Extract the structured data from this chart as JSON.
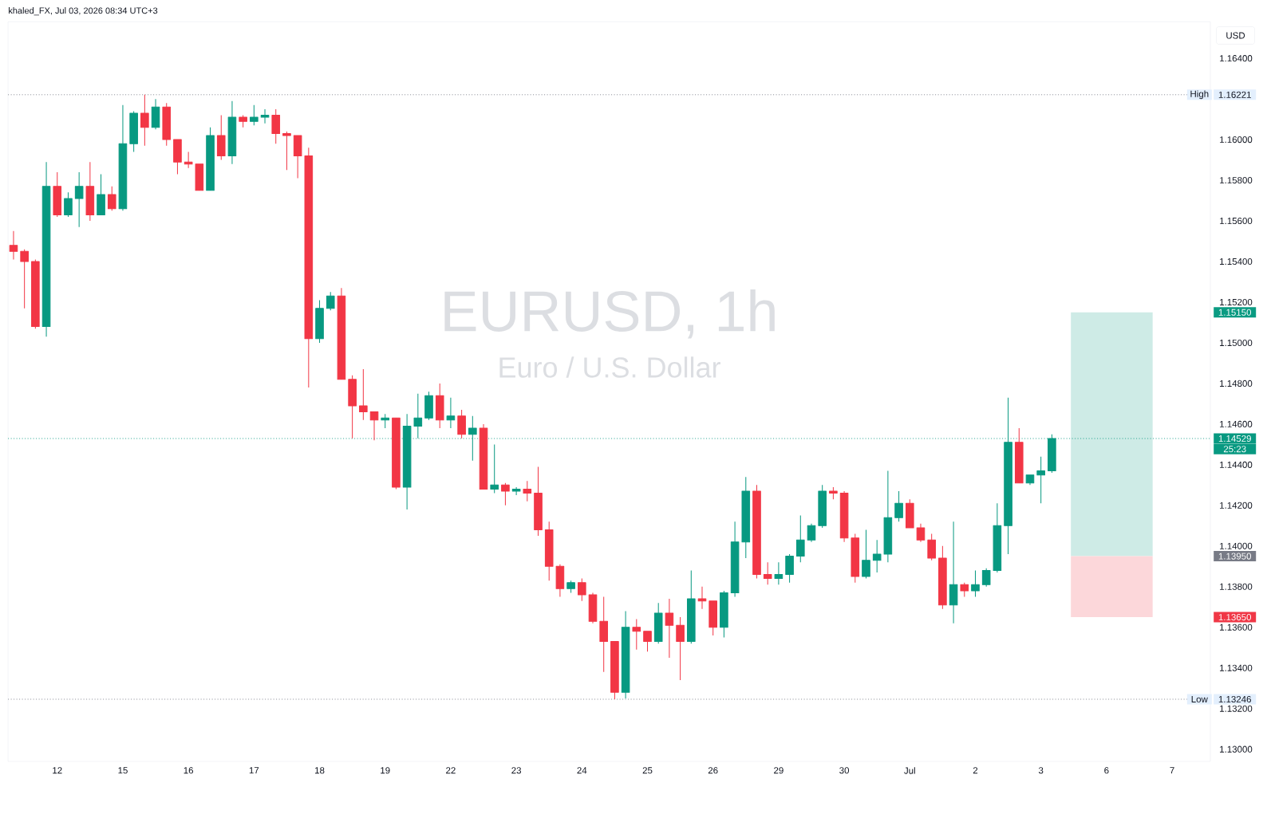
{
  "chart_data": {
    "type": "candlestick",
    "title": "EURUSD, 1h",
    "subtitle": "Euro / U.S. Dollar",
    "ylabel": "USD",
    "annotations": [
      "khaled_FX, Jul 03, 2026 08:34 UTC+3",
      "25:23"
    ],
    "categories": [
      null,
      null,
      null,
      null,
      "12",
      null,
      null,
      null,
      null,
      null,
      "15",
      null,
      null,
      null,
      null,
      null,
      "16",
      null,
      null,
      null,
      null,
      null,
      "17",
      null,
      null,
      null,
      null,
      null,
      "18",
      null,
      null,
      null,
      null,
      null,
      "19",
      null,
      null,
      null,
      null,
      null,
      "22",
      null,
      null,
      null,
      null,
      null,
      "23",
      null,
      null,
      null,
      null,
      null,
      "24",
      null,
      null,
      null,
      null,
      null,
      "25",
      null,
      null,
      null,
      null,
      null,
      "26",
      null,
      null,
      null,
      null,
      null,
      "29",
      null,
      null,
      null,
      null,
      null,
      "30",
      null,
      null,
      null,
      null,
      null,
      "Jul",
      null,
      null,
      null,
      null,
      null,
      "2",
      null,
      null,
      null,
      null,
      null,
      "3",
      null,
      null,
      null,
      null,
      null,
      "6",
      null,
      null,
      null,
      null,
      null,
      "7",
      null,
      null,
      null
    ],
    "ohlc": [
      [
        1.1548,
        1.1555,
        1.1541,
        1.1545
      ],
      [
        1.1545,
        1.1546,
        1.1517,
        1.154
      ],
      [
        1.154,
        1.1541,
        1.1507,
        1.1508
      ],
      [
        1.1508,
        1.1589,
        1.1503,
        1.1577
      ],
      [
        1.1577,
        1.1584,
        1.1562,
        1.1563
      ],
      [
        1.1563,
        1.1574,
        1.1562,
        1.1571
      ],
      [
        1.1571,
        1.1584,
        1.1557,
        1.1577
      ],
      [
        1.1577,
        1.1589,
        1.156,
        1.1563
      ],
      [
        1.1563,
        1.1583,
        1.1563,
        1.1573
      ],
      [
        1.1573,
        1.1577,
        1.1565,
        1.1566
      ],
      [
        1.1566,
        1.1617,
        1.1565,
        1.1598
      ],
      [
        1.1598,
        1.1614,
        1.1594,
        1.1613
      ],
      [
        1.1613,
        1.16221,
        1.1597,
        1.1606
      ],
      [
        1.1606,
        1.162,
        1.1605,
        1.1616
      ],
      [
        1.1616,
        1.1618,
        1.1597,
        1.16
      ],
      [
        1.16,
        1.16,
        1.1583,
        1.1589
      ],
      [
        1.1589,
        1.1594,
        1.1586,
        1.1588
      ],
      [
        1.1588,
        1.1588,
        1.1575,
        1.1575
      ],
      [
        1.1575,
        1.1606,
        1.1575,
        1.1602
      ],
      [
        1.1602,
        1.1612,
        1.159,
        1.1592
      ],
      [
        1.1592,
        1.1619,
        1.1588,
        1.1611
      ],
      [
        1.1611,
        1.1612,
        1.1606,
        1.1609
      ],
      [
        1.1609,
        1.1617,
        1.1607,
        1.1611
      ],
      [
        1.1611,
        1.1615,
        1.1608,
        1.1612
      ],
      [
        1.1612,
        1.1615,
        1.1598,
        1.1603
      ],
      [
        1.1603,
        1.1604,
        1.1585,
        1.1602
      ],
      [
        1.1602,
        1.1602,
        1.1581,
        1.1592
      ],
      [
        1.1592,
        1.1596,
        1.1478,
        1.1502
      ],
      [
        1.1502,
        1.1521,
        1.15,
        1.1517
      ],
      [
        1.1517,
        1.1525,
        1.1516,
        1.1523
      ],
      [
        1.1523,
        1.1527,
        1.1482,
        1.1482
      ],
      [
        1.1482,
        1.1484,
        1.1453,
        1.1469
      ],
      [
        1.1469,
        1.1487,
        1.1462,
        1.1466
      ],
      [
        1.1466,
        1.1466,
        1.1452,
        1.1462
      ],
      [
        1.1462,
        1.1465,
        1.1458,
        1.1463
      ],
      [
        1.1463,
        1.1463,
        1.1428,
        1.1429
      ],
      [
        1.1429,
        1.1465,
        1.1418,
        1.1459
      ],
      [
        1.1459,
        1.1475,
        1.1453,
        1.1463
      ],
      [
        1.1463,
        1.1476,
        1.1462,
        1.1474
      ],
      [
        1.1474,
        1.148,
        1.1458,
        1.1462
      ],
      [
        1.1462,
        1.1473,
        1.1458,
        1.1464
      ],
      [
        1.1464,
        1.1467,
        1.1453,
        1.1455
      ],
      [
        1.1455,
        1.1464,
        1.1442,
        1.1458
      ],
      [
        1.1458,
        1.146,
        1.1428,
        1.1428
      ],
      [
        1.1428,
        1.145,
        1.1426,
        1.143
      ],
      [
        1.143,
        1.1431,
        1.142,
        1.1427
      ],
      [
        1.1427,
        1.1429,
        1.1425,
        1.1428
      ],
      [
        1.1428,
        1.1432,
        1.1422,
        1.1426
      ],
      [
        1.1426,
        1.1439,
        1.1405,
        1.1408
      ],
      [
        1.1408,
        1.1412,
        1.1383,
        1.139
      ],
      [
        1.139,
        1.1391,
        1.1375,
        1.1379
      ],
      [
        1.1379,
        1.1383,
        1.1377,
        1.1382
      ],
      [
        1.1382,
        1.1384,
        1.1373,
        1.1376
      ],
      [
        1.1376,
        1.1377,
        1.1362,
        1.1363
      ],
      [
        1.1363,
        1.1375,
        1.1338,
        1.1353
      ],
      [
        1.1353,
        1.1353,
        1.13246,
        1.1328
      ],
      [
        1.1328,
        1.1368,
        1.1325,
        1.136
      ],
      [
        1.136,
        1.1364,
        1.1349,
        1.1358
      ],
      [
        1.1358,
        1.1358,
        1.1348,
        1.1353
      ],
      [
        1.1353,
        1.1372,
        1.1352,
        1.1367
      ],
      [
        1.1367,
        1.1374,
        1.1345,
        1.1361
      ],
      [
        1.1361,
        1.1365,
        1.1334,
        1.1353
      ],
      [
        1.1353,
        1.1388,
        1.1352,
        1.1374
      ],
      [
        1.1374,
        1.138,
        1.1369,
        1.1373
      ],
      [
        1.1373,
        1.1373,
        1.1356,
        1.136
      ],
      [
        1.136,
        1.1378,
        1.1355,
        1.1377
      ],
      [
        1.1377,
        1.1412,
        1.1375,
        1.1402
      ],
      [
        1.1402,
        1.1434,
        1.1394,
        1.1427
      ],
      [
        1.1427,
        1.143,
        1.1384,
        1.1386
      ],
      [
        1.1386,
        1.1392,
        1.1381,
        1.1384
      ],
      [
        1.1384,
        1.1392,
        1.1381,
        1.1386
      ],
      [
        1.1386,
        1.1396,
        1.1382,
        1.1395
      ],
      [
        1.1395,
        1.1415,
        1.1392,
        1.1403
      ],
      [
        1.1403,
        1.1411,
        1.1402,
        1.141
      ],
      [
        1.141,
        1.143,
        1.1409,
        1.1427
      ],
      [
        1.1427,
        1.1429,
        1.1423,
        1.1426
      ],
      [
        1.1426,
        1.1427,
        1.1402,
        1.1404
      ],
      [
        1.1404,
        1.1406,
        1.1382,
        1.1385
      ],
      [
        1.1385,
        1.1408,
        1.1384,
        1.1393
      ],
      [
        1.1393,
        1.1403,
        1.1387,
        1.1396
      ],
      [
        1.1396,
        1.1437,
        1.1392,
        1.1414
      ],
      [
        1.1414,
        1.1427,
        1.1412,
        1.1421
      ],
      [
        1.1421,
        1.1423,
        1.1409,
        1.1409
      ],
      [
        1.1409,
        1.1411,
        1.1402,
        1.1403
      ],
      [
        1.1403,
        1.1406,
        1.1393,
        1.1394
      ],
      [
        1.1394,
        1.14,
        1.1369,
        1.1371
      ],
      [
        1.1371,
        1.1412,
        1.1362,
        1.1381
      ],
      [
        1.1381,
        1.1382,
        1.1375,
        1.1378
      ],
      [
        1.1378,
        1.1388,
        1.1375,
        1.1381
      ],
      [
        1.1381,
        1.1389,
        1.138,
        1.1388
      ],
      [
        1.1388,
        1.1421,
        1.1387,
        1.141
      ],
      [
        1.141,
        1.1473,
        1.1396,
        1.1451
      ],
      [
        1.1451,
        1.1458,
        1.1431,
        1.1431
      ],
      [
        1.1431,
        1.1435,
        1.143,
        1.1435
      ],
      [
        1.1435,
        1.1444,
        1.1421,
        1.1437
      ],
      [
        1.1437,
        1.1455,
        1.1436,
        1.14529
      ],
      null,
      null,
      null,
      null,
      null,
      null,
      null,
      null,
      null,
      null,
      null,
      null,
      null,
      null
    ],
    "colors": [
      "#f23645",
      "#f23645",
      "#f23645",
      "#089981",
      "#f23645",
      "#089981",
      "#089981",
      "#f23645",
      "#089981",
      "#f23645",
      "#089981",
      "#089981",
      "#f23645",
      "#089981",
      "#f23645",
      "#f23645",
      "#f23645",
      "#f23645",
      "#089981",
      "#f23645",
      "#089981",
      "#f23645",
      "#089981",
      "#089981",
      "#f23645",
      "#f23645",
      "#f23645",
      "#f23645",
      "#089981",
      "#089981",
      "#f23645",
      "#f23645",
      "#f23645",
      "#f23645",
      "#089981",
      "#f23645",
      "#089981",
      "#089981",
      "#089981",
      "#f23645",
      "#089981",
      "#f23645",
      "#089981",
      "#f23645",
      "#089981",
      "#f23645",
      "#089981",
      "#f23645",
      "#f23645",
      "#f23645",
      "#f23645",
      "#089981",
      "#f23645",
      "#f23645",
      "#f23645",
      "#f23645",
      "#089981",
      "#f23645",
      "#f23645",
      "#089981",
      "#f23645",
      "#f23645",
      "#089981",
      "#f23645",
      "#f23645",
      "#089981",
      "#089981",
      "#089981",
      "#f23645",
      "#f23645",
      "#089981",
      "#089981",
      "#089981",
      "#089981",
      "#089981",
      "#f23645",
      "#f23645",
      "#f23645",
      "#089981",
      "#089981",
      "#089981",
      "#089981",
      "#f23645",
      "#f23645",
      "#f23645",
      "#f23645",
      "#089981",
      "#f23645",
      "#089981",
      "#089981",
      "#089981",
      "#089981",
      "#f23645",
      "#089981",
      "#089981",
      "#089981",
      null,
      null,
      null,
      null,
      null,
      null,
      null,
      null,
      null,
      null,
      null,
      null,
      null,
      null
    ],
    "ylim": [
      1.1294,
      1.1658
    ],
    "yticks": [
      {
        "value": 1.164,
        "label": "1.16400"
      },
      {
        "value": 1.16221,
        "label": "1.16221"
      },
      {
        "value": 1.16,
        "label": "1.16000"
      },
      {
        "value": 1.158,
        "label": "1.15800"
      },
      {
        "value": 1.156,
        "label": "1.15600"
      },
      {
        "value": 1.154,
        "label": "1.15400"
      },
      {
        "value": 1.152,
        "label": "1.15200"
      },
      {
        "value": 1.1515,
        "label": "1.15150"
      },
      {
        "value": 1.15,
        "label": "1.15000"
      },
      {
        "value": 1.148,
        "label": "1.14800"
      },
      {
        "value": 1.146,
        "label": "1.14600"
      },
      {
        "value": 1.14529,
        "label": "1.14529"
      },
      {
        "value": 1.144,
        "label": "1.14400"
      },
      {
        "value": 1.142,
        "label": "1.14200"
      },
      {
        "value": 1.14,
        "label": "1.14000"
      },
      {
        "value": 1.1395,
        "label": "1.13950"
      },
      {
        "value": 1.138,
        "label": "1.13800"
      },
      {
        "value": 1.1365,
        "label": "1.13650"
      },
      {
        "value": 1.136,
        "label": "1.13600"
      },
      {
        "value": 1.134,
        "label": "1.13400"
      },
      {
        "value": 1.13246,
        "label": "1.13246"
      },
      {
        "value": 1.132,
        "label": "1.13200"
      },
      {
        "value": 1.13,
        "label": "1.13000"
      }
    ],
    "ref_lines": [
      {
        "axis": "y",
        "value": 1.16221,
        "label": "High",
        "line_style": "dotted",
        "color": "#787b86"
      },
      {
        "axis": "y",
        "value": 1.14529,
        "line_style": "dotted",
        "color": "#089981"
      },
      {
        "axis": "y",
        "value": 1.13246,
        "label": "Low",
        "line_style": "dotted",
        "color": "#787b86"
      }
    ],
    "bands": [
      {
        "axis": "y",
        "from": 1.1395,
        "to": 1.1515,
        "color": "#ceebe6"
      },
      {
        "axis": "y",
        "from": 1.1365,
        "to": 1.1395,
        "color": "#fcd7da"
      }
    ]
  }
}
